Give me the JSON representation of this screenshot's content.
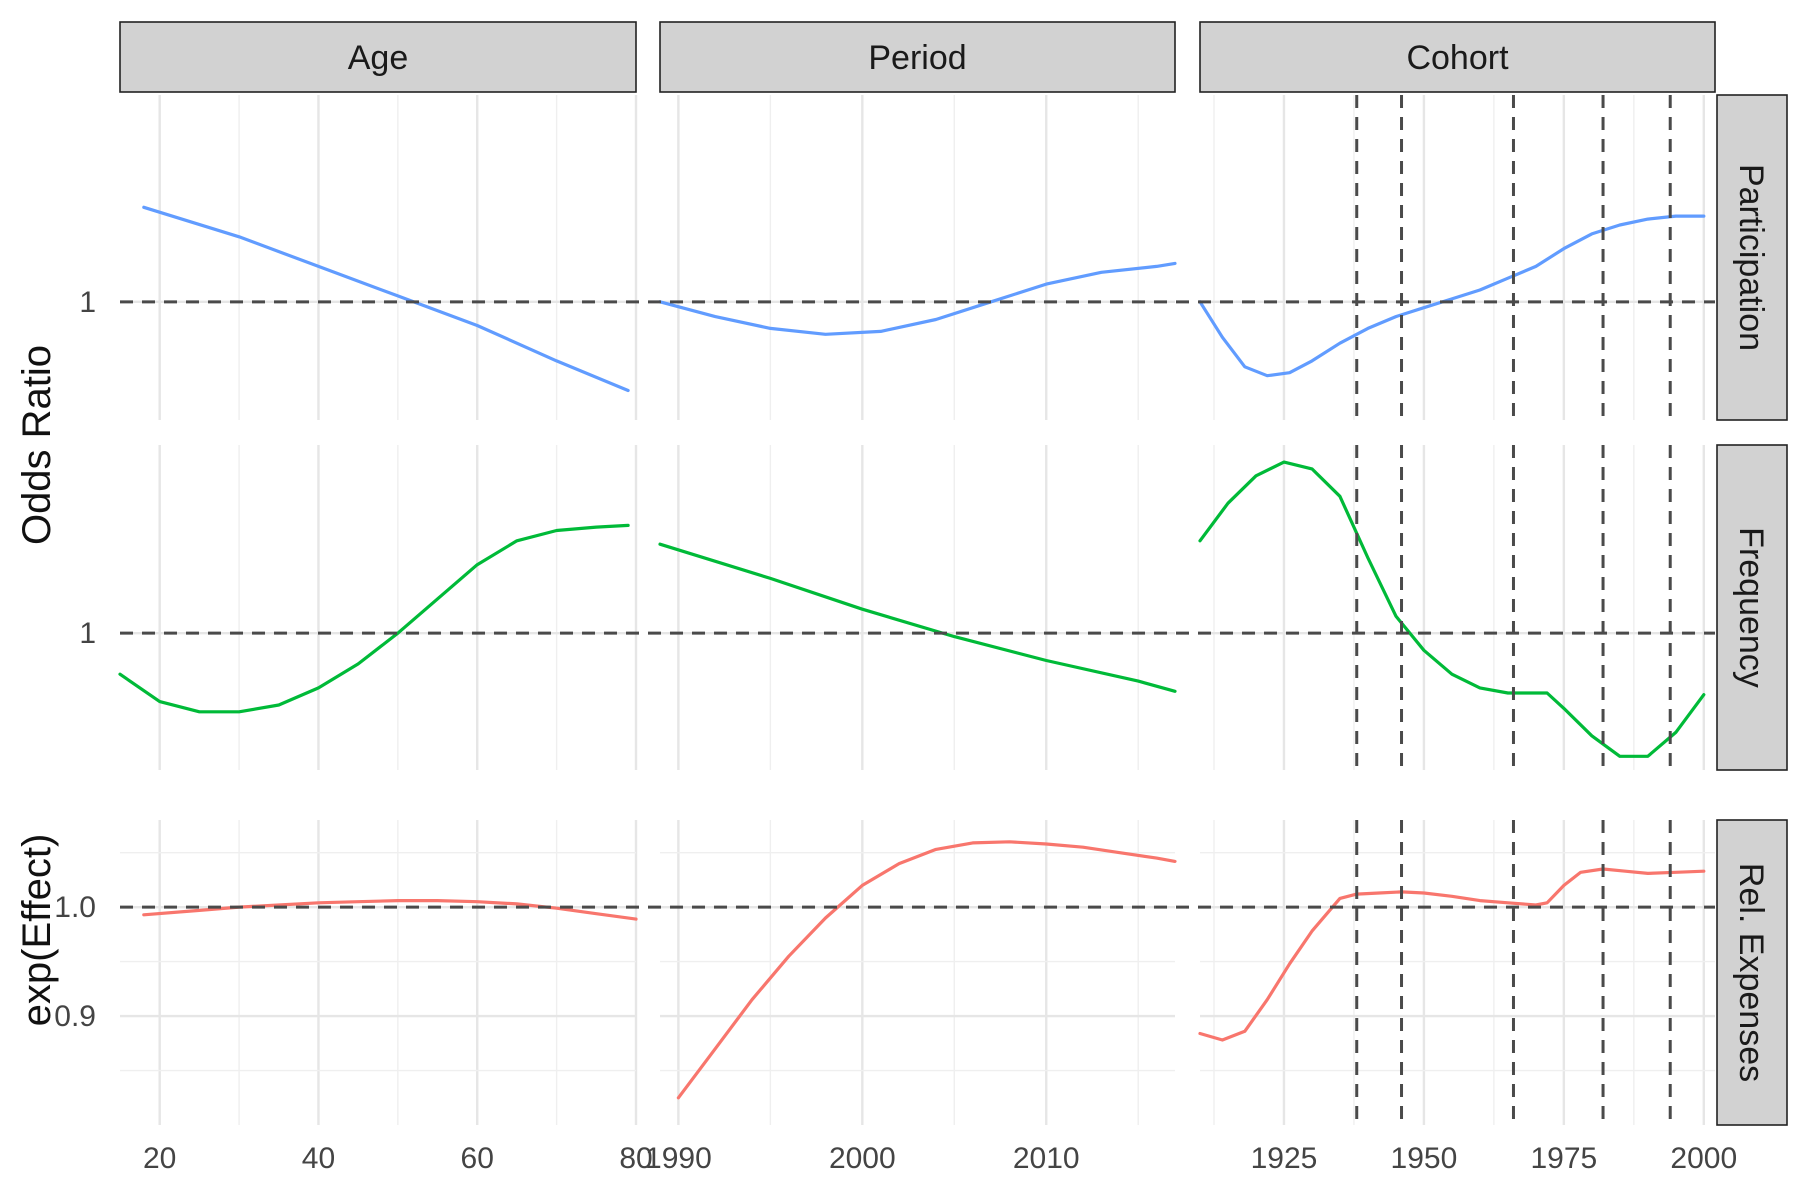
{
  "colors": {
    "participation": "#619CFF",
    "frequency": "#00BA38",
    "expenses": "#F8766D"
  },
  "chart_data": {
    "type": "line",
    "facet_cols": [
      "Age",
      "Period",
      "Cohort"
    ],
    "facet_rows": [
      "Participation",
      "Frequency",
      "Rel. Expenses"
    ],
    "y_titles": {
      "odds": "Odds Ratio",
      "effect": "exp(Effect)"
    },
    "reference_line_y": 1,
    "cohort_reference_years": [
      1938,
      1946,
      1966,
      1982,
      1994
    ],
    "x_axes": {
      "Age": {
        "range": [
          15,
          80
        ],
        "ticks": [
          20,
          40,
          60,
          80
        ]
      },
      "Period": {
        "range": [
          1989,
          2017
        ],
        "ticks": [
          1990,
          2000,
          2010
        ]
      },
      "Cohort": {
        "range": [
          1910,
          2002
        ],
        "ticks": [
          1925,
          1950,
          1975,
          2000
        ]
      }
    },
    "rows": {
      "Participation": {
        "y_ticks": [
          {
            "value": 1,
            "label": "1"
          }
        ],
        "ylim": [
          0.8,
          1.35
        ],
        "series": {
          "Age": {
            "x": [
              18,
              30,
              40,
              50,
              60,
              70,
              79
            ],
            "y": [
              1.16,
              1.11,
              1.06,
              1.01,
              0.96,
              0.9,
              0.85
            ]
          },
          "Period": {
            "x": [
              1989,
              1992,
              1995,
              1998,
              2001,
              2004,
              2007,
              2010,
              2013,
              2016,
              2017
            ],
            "y": [
              1.0,
              0.975,
              0.955,
              0.945,
              0.95,
              0.97,
              1.0,
              1.03,
              1.05,
              1.06,
              1.065
            ]
          },
          "Cohort": {
            "x": [
              1910,
              1914,
              1918,
              1922,
              1926,
              1930,
              1935,
              1940,
              1945,
              1950,
              1955,
              1960,
              1965,
              1970,
              1975,
              1980,
              1985,
              1990,
              1995,
              2000
            ],
            "y": [
              1.0,
              0.94,
              0.89,
              0.875,
              0.88,
              0.9,
              0.93,
              0.955,
              0.975,
              0.99,
              1.005,
              1.02,
              1.04,
              1.06,
              1.09,
              1.115,
              1.13,
              1.14,
              1.145,
              1.145
            ]
          }
        }
      },
      "Frequency": {
        "y_ticks": [
          {
            "value": 1,
            "label": "1"
          }
        ],
        "ylim": [
          0.6,
          1.55
        ],
        "series": {
          "Age": {
            "x": [
              15,
              20,
              25,
              30,
              35,
              40,
              45,
              50,
              55,
              60,
              65,
              70,
              75,
              79
            ],
            "y": [
              0.88,
              0.8,
              0.77,
              0.77,
              0.79,
              0.84,
              0.91,
              1.0,
              1.1,
              1.2,
              1.27,
              1.3,
              1.31,
              1.315
            ]
          },
          "Period": {
            "x": [
              1989,
              1995,
              2000,
              2005,
              2010,
              2015,
              2017
            ],
            "y": [
              1.26,
              1.16,
              1.07,
              0.99,
              0.92,
              0.86,
              0.83
            ]
          },
          "Cohort": {
            "x": [
              1910,
              1915,
              1920,
              1925,
              1930,
              1935,
              1940,
              1945,
              1950,
              1955,
              1960,
              1965,
              1970,
              1972,
              1975,
              1980,
              1985,
              1990,
              1995,
              2000
            ],
            "y": [
              1.27,
              1.38,
              1.46,
              1.5,
              1.48,
              1.4,
              1.22,
              1.05,
              0.95,
              0.88,
              0.84,
              0.825,
              0.825,
              0.825,
              0.78,
              0.7,
              0.64,
              0.64,
              0.71,
              0.82
            ]
          }
        }
      },
      "Rel. Expenses": {
        "y_ticks": [
          {
            "value": 0.9,
            "label": "0.9"
          },
          {
            "value": 1.0,
            "label": "1.0"
          }
        ],
        "minor_ticks": [
          0.85,
          0.95,
          1.05
        ],
        "ylim": [
          0.8,
          1.08
        ],
        "series": {
          "Age": {
            "x": [
              18,
              25,
              30,
              35,
              40,
              45,
              50,
              55,
              60,
              65,
              70,
              75,
              80
            ],
            "y": [
              0.993,
              0.997,
              1.0,
              1.002,
              1.004,
              1.005,
              1.006,
              1.006,
              1.005,
              1.003,
              0.999,
              0.994,
              0.989
            ]
          },
          "Period": {
            "x": [
              1990,
              1992,
              1994,
              1996,
              1998,
              2000,
              2002,
              2004,
              2006,
              2008,
              2010,
              2012,
              2014,
              2016,
              2017
            ],
            "y": [
              0.825,
              0.87,
              0.915,
              0.955,
              0.99,
              1.02,
              1.04,
              1.053,
              1.059,
              1.06,
              1.058,
              1.055,
              1.05,
              1.045,
              1.042
            ]
          },
          "Cohort": {
            "x": [
              1910,
              1914,
              1918,
              1922,
              1926,
              1930,
              1935,
              1938,
              1942,
              1946,
              1950,
              1955,
              1960,
              1965,
              1970,
              1972,
              1975,
              1978,
              1982,
              1986,
              1990,
              1995,
              2000
            ],
            "y": [
              0.884,
              0.878,
              0.886,
              0.915,
              0.948,
              0.978,
              1.008,
              1.012,
              1.013,
              1.014,
              1.013,
              1.01,
              1.006,
              1.004,
              1.002,
              1.004,
              1.02,
              1.032,
              1.035,
              1.033,
              1.031,
              1.032,
              1.033
            ]
          }
        }
      }
    }
  }
}
